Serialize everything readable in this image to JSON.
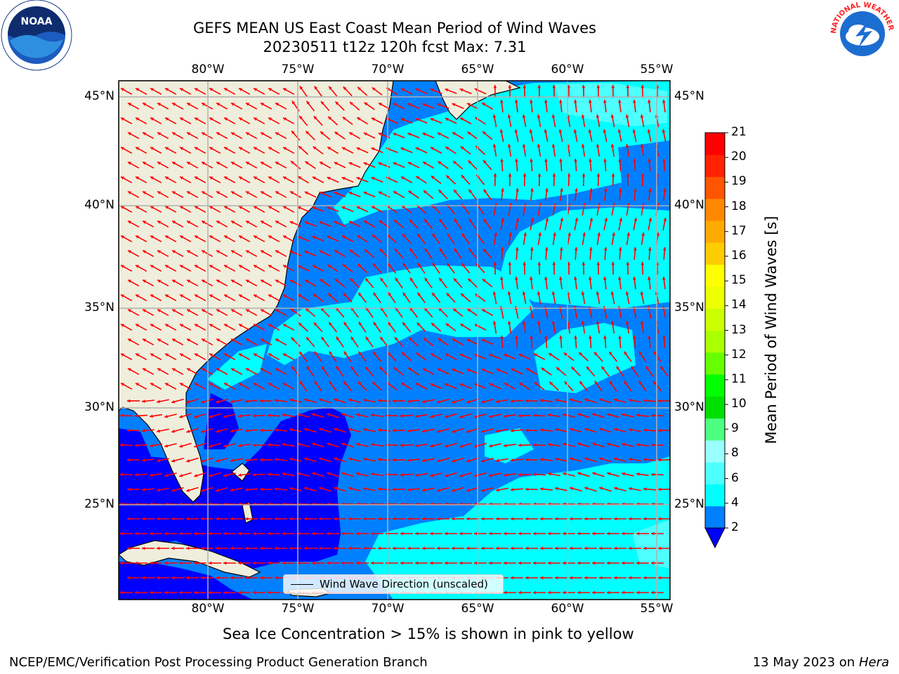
{
  "header": {
    "title_line1": "GEFS MEAN US East Coast Mean Period of Wind Waves",
    "title_line2": "20230511 t12z 120h fcst   Max: 7.31"
  },
  "logos": {
    "left": {
      "name": "noaa-logo",
      "text": "NOAA"
    },
    "right": {
      "name": "nws-logo",
      "text": "NATIONAL WEATHER SERVICE"
    }
  },
  "map": {
    "lon_labels": [
      "80°W",
      "75°W",
      "70°W",
      "65°W",
      "60°W",
      "55°W"
    ],
    "lat_labels": [
      "45°N",
      "40°N",
      "35°N",
      "30°N",
      "25°N"
    ],
    "legend_label": "Wind Wave Direction (unscaled)",
    "colors": {
      "land": "#efeedc",
      "deep_blue": "#0000ff",
      "mid_blue": "#0080ff",
      "cyan": "#00ffff",
      "light_cyan": "#4dffff",
      "arrow": "#ff0000",
      "grid": "#b0b0b0"
    }
  },
  "colorbar": {
    "title": "Mean Period of Wind Waves [s]",
    "ticks": [
      "2",
      "4",
      "6",
      "8",
      "9",
      "10",
      "11",
      "12",
      "13",
      "14",
      "15",
      "16",
      "17",
      "18",
      "19",
      "20",
      "21"
    ],
    "colors": [
      "#0080ff",
      "#00ffff",
      "#4dffff",
      "#99ffff",
      "#4dff80",
      "#00e000",
      "#00ff00",
      "#66ff00",
      "#aaff00",
      "#ccff00",
      "#eeff00",
      "#ffff00",
      "#ffcc00",
      "#ffaa00",
      "#ff8800",
      "#ff5500",
      "#ff2200",
      "#ff0000"
    ],
    "under_color": "#0000ff"
  },
  "footer": {
    "note": "Sea Ice Concentration > 15% is shown in pink to yellow",
    "credit": "NCEP/EMC/Verification Post Processing Product Generation Branch",
    "date": "13 May 2023 on",
    "machine": "Hera"
  }
}
